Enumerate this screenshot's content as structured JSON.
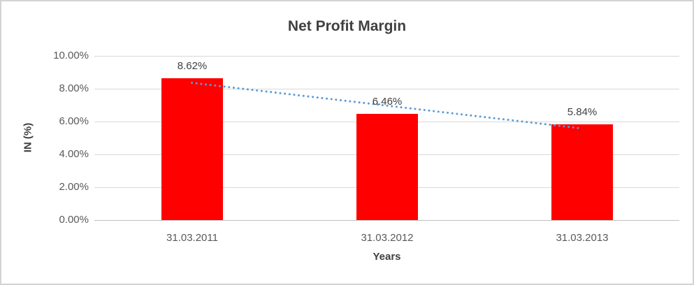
{
  "frame": {
    "background_color": "#ffffff",
    "border_color": "#d3d3d3"
  },
  "chart_data": {
    "type": "bar",
    "title": "Net Profit Margin",
    "xlabel": "Years",
    "ylabel": "IN (%)",
    "categories": [
      "31.03.2011",
      "31.03.2012",
      "31.03.2013"
    ],
    "values": [
      8.62,
      6.46,
      5.84
    ],
    "data_labels": [
      "8.62%",
      "6.46%",
      "5.84%"
    ],
    "y_ticks": [
      {
        "value": 0,
        "label": "0.00%"
      },
      {
        "value": 2,
        "label": "2.00%"
      },
      {
        "value": 4,
        "label": "4.00%"
      },
      {
        "value": 6,
        "label": "6.00%"
      },
      {
        "value": 8,
        "label": "8.00%"
      },
      {
        "value": 10,
        "label": "10.00%"
      }
    ],
    "ylim": [
      0,
      10
    ],
    "grid": true,
    "legend_position": "none",
    "bar_color": "#ff0000",
    "gridline_color": "#d9d9d9",
    "axis_line_color": "#bfbfbf",
    "trendline": {
      "type": "linear",
      "style": "dotted",
      "color": "#5b9bd5",
      "start_value": 8.36,
      "end_value": 5.58
    }
  }
}
